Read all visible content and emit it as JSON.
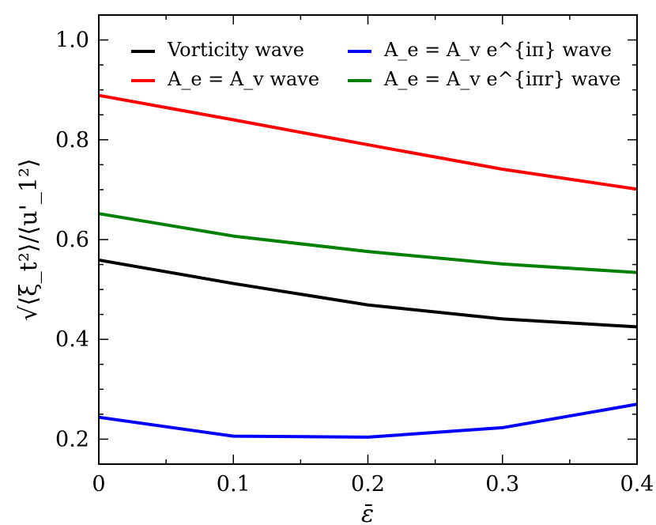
{
  "chart_data": {
    "type": "line",
    "title": "",
    "xlabel": "ε̄",
    "ylabel": "√⟨ξ_t²⟩/⟨u'_1²⟩",
    "xlim": [
      0,
      0.4
    ],
    "ylim": [
      0.15,
      1.05
    ],
    "xticks": [
      0,
      0.1,
      0.2,
      0.3,
      0.4
    ],
    "xtick_labels": [
      "0",
      "0.1",
      "0.2",
      "0.3",
      "0.4"
    ],
    "yticks": [
      0.2,
      0.4,
      0.6,
      0.8,
      1.0
    ],
    "ytick_labels": [
      "0.2",
      "0.4",
      "0.6",
      "0.8",
      "1.0"
    ],
    "grid": false,
    "legend_position": "top",
    "x": [
      0,
      0.1,
      0.2,
      0.3,
      0.4
    ],
    "series": [
      {
        "name": "Vorticity wave",
        "color": "#000000",
        "values": [
          0.559,
          0.512,
          0.469,
          0.441,
          0.425
        ]
      },
      {
        "name": "A_e = A_v wave",
        "color": "#ff0000",
        "values": [
          0.889,
          0.84,
          0.79,
          0.741,
          0.701
        ]
      },
      {
        "name": "A_e = A_v e^{iπ} wave",
        "color": "#0000ff",
        "values": [
          0.244,
          0.206,
          0.204,
          0.223,
          0.27
        ]
      },
      {
        "name": "A_e = A_v e^{iπr} wave",
        "color": "#008000",
        "values": [
          0.652,
          0.607,
          0.576,
          0.551,
          0.534
        ]
      }
    ]
  }
}
